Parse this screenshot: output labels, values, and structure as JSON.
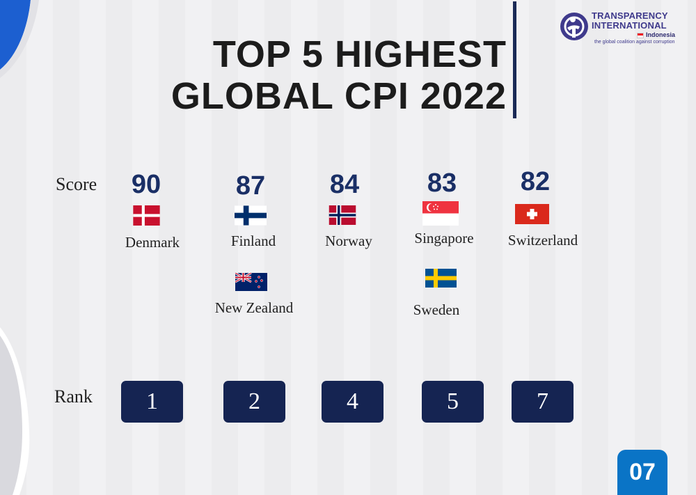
{
  "title": {
    "line1": "TOP 5 HIGHEST",
    "line2": "GLOBAL CPI 2022"
  },
  "logo": {
    "name_line1": "TRANSPARENCY",
    "name_line2": "INTERNATIONAL",
    "country": "Indonesia",
    "tagline": "the global coalition against corruption"
  },
  "labels": {
    "score": "Score",
    "rank": "Rank"
  },
  "entries": [
    {
      "score": "90",
      "country": "Denmark",
      "rank": "1"
    },
    {
      "score": "87",
      "country": "Finland",
      "second_country": "New Zealand",
      "rank": "2"
    },
    {
      "score": "84",
      "country": "Norway",
      "rank": "4"
    },
    {
      "score": "83",
      "country": "Singapore",
      "second_country": "Sweden",
      "rank": "5"
    },
    {
      "score": "82",
      "country": "Switzerland",
      "rank": "7"
    }
  ],
  "page_number": "07",
  "colors": {
    "navy": "#152452",
    "score_blue": "#1a2f66",
    "accent_blue": "#0a74c6",
    "logo_purple": "#3f3a8c"
  }
}
